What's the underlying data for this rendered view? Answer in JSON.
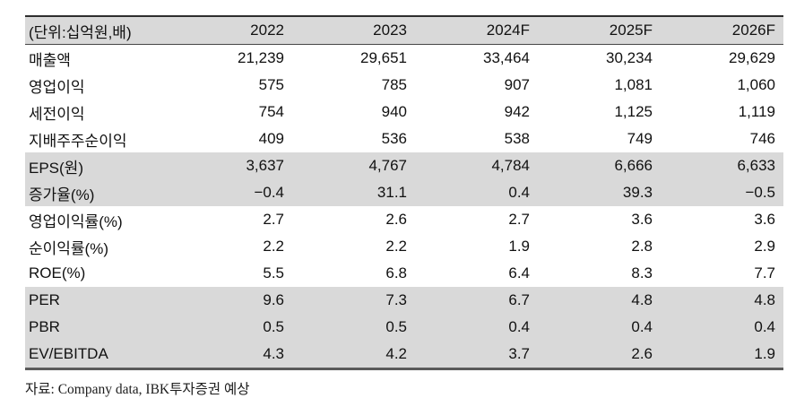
{
  "table": {
    "unit_label": "(단위:십억원,배)",
    "columns": [
      "2022",
      "2023",
      "2024F",
      "2025F",
      "2026F"
    ],
    "rows": [
      {
        "label": "매출액",
        "values": [
          "21,239",
          "29,651",
          "33,464",
          "30,234",
          "29,629"
        ],
        "shaded": false
      },
      {
        "label": "영업이익",
        "values": [
          "575",
          "785",
          "907",
          "1,081",
          "1,060"
        ],
        "shaded": false
      },
      {
        "label": "세전이익",
        "values": [
          "754",
          "940",
          "942",
          "1,125",
          "1,119"
        ],
        "shaded": false
      },
      {
        "label": "지배주주순이익",
        "values": [
          "409",
          "536",
          "538",
          "749",
          "746"
        ],
        "shaded": false
      },
      {
        "label": "EPS(원)",
        "values": [
          "3,637",
          "4,767",
          "4,784",
          "6,666",
          "6,633"
        ],
        "shaded": true
      },
      {
        "label": "증가율(%)",
        "values": [
          "−0.4",
          "31.1",
          "0.4",
          "39.3",
          "−0.5"
        ],
        "shaded": true
      },
      {
        "label": "영업이익률(%)",
        "values": [
          "2.7",
          "2.6",
          "2.7",
          "3.6",
          "3.6"
        ],
        "shaded": false
      },
      {
        "label": "순이익률(%)",
        "values": [
          "2.2",
          "2.2",
          "1.9",
          "2.8",
          "2.9"
        ],
        "shaded": false
      },
      {
        "label": "ROE(%)",
        "values": [
          "5.5",
          "6.8",
          "6.4",
          "8.3",
          "7.7"
        ],
        "shaded": false
      },
      {
        "label": "PER",
        "values": [
          "9.6",
          "7.3",
          "6.7",
          "4.8",
          "4.8"
        ],
        "shaded": true
      },
      {
        "label": "PBR",
        "values": [
          "0.5",
          "0.5",
          "0.4",
          "0.4",
          "0.4"
        ],
        "shaded": true
      },
      {
        "label": "EV/EBITDA",
        "values": [
          "4.3",
          "4.2",
          "3.7",
          "2.6",
          "1.9"
        ],
        "shaded": true
      }
    ],
    "source_note": "자료: Company data, IBK투자증권 예상"
  },
  "colors": {
    "shaded_row_bg": "#d9d9d9",
    "top_border": "#2e2e2e",
    "header_divider": "#474747",
    "bottom_border": "#5a5a5a",
    "text": "#111111"
  }
}
